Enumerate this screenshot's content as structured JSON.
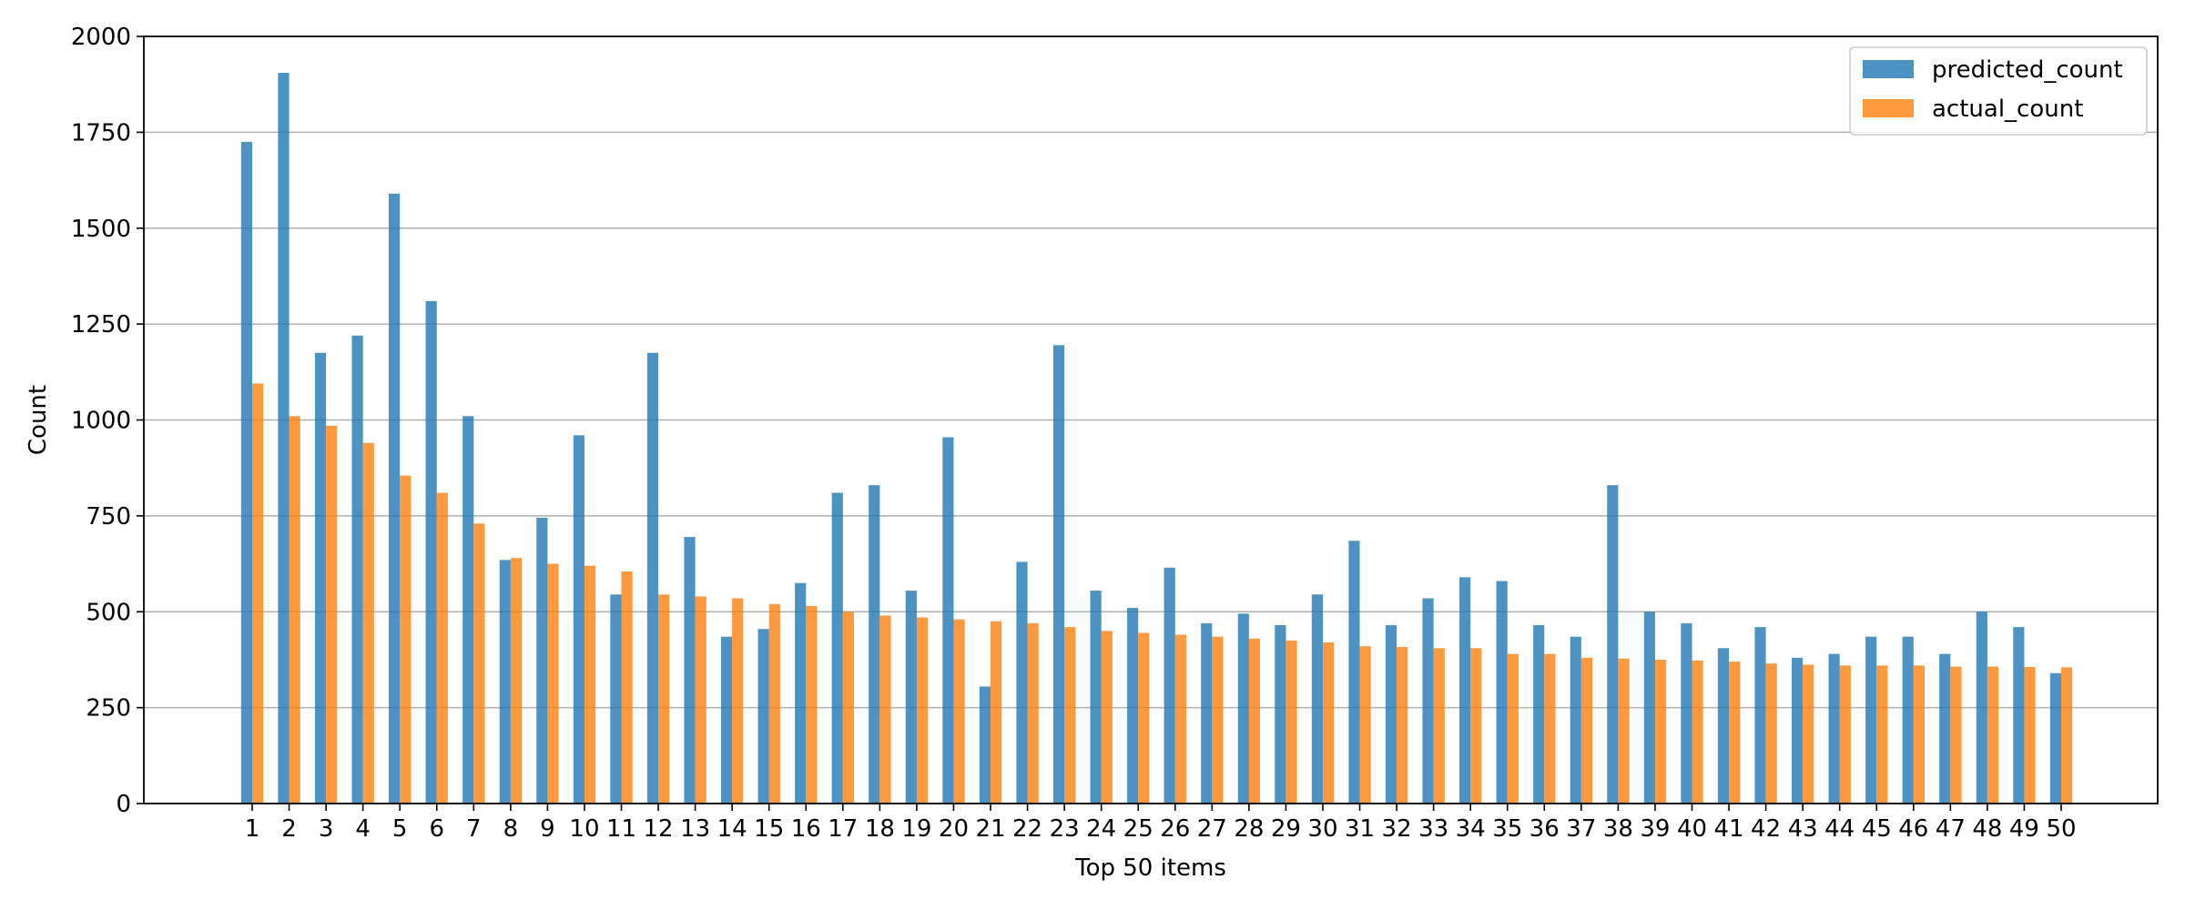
{
  "chart_data": {
    "type": "bar",
    "title": "",
    "xlabel": "Top 50 items",
    "ylabel": "Count",
    "ylim": [
      0,
      2000
    ],
    "yticks": [
      0,
      250,
      500,
      750,
      1000,
      1250,
      1500,
      1750,
      2000
    ],
    "grid": "horizontal",
    "legend_position": "top-right",
    "categories": [
      "1",
      "2",
      "3",
      "4",
      "5",
      "6",
      "7",
      "8",
      "9",
      "10",
      "11",
      "12",
      "13",
      "14",
      "15",
      "16",
      "17",
      "18",
      "19",
      "20",
      "21",
      "22",
      "23",
      "24",
      "25",
      "26",
      "27",
      "28",
      "29",
      "30",
      "31",
      "32",
      "33",
      "34",
      "35",
      "36",
      "37",
      "38",
      "39",
      "40",
      "41",
      "42",
      "43",
      "44",
      "45",
      "46",
      "47",
      "48",
      "49",
      "50"
    ],
    "series": [
      {
        "name": "predicted_count",
        "color": "#1f77b4",
        "values": [
          1725,
          1905,
          1175,
          1220,
          1590,
          1310,
          1010,
          635,
          745,
          960,
          545,
          1175,
          695,
          435,
          455,
          575,
          810,
          830,
          555,
          955,
          305,
          630,
          1195,
          555,
          510,
          615,
          470,
          495,
          465,
          545,
          685,
          465,
          535,
          590,
          580,
          465,
          435,
          830,
          500,
          470,
          405,
          460,
          380,
          390,
          435,
          435,
          390,
          500,
          460,
          340
        ]
      },
      {
        "name": "actual_count",
        "color": "#ff7f0e",
        "values": [
          1095,
          1010,
          985,
          940,
          855,
          810,
          730,
          640,
          625,
          620,
          605,
          545,
          540,
          535,
          520,
          515,
          500,
          490,
          485,
          480,
          475,
          470,
          460,
          450,
          445,
          440,
          435,
          430,
          425,
          420,
          410,
          408,
          405,
          405,
          390,
          390,
          380,
          378,
          375,
          373,
          370,
          365,
          362,
          360,
          360,
          360,
          357,
          357,
          356,
          355
        ]
      }
    ]
  }
}
